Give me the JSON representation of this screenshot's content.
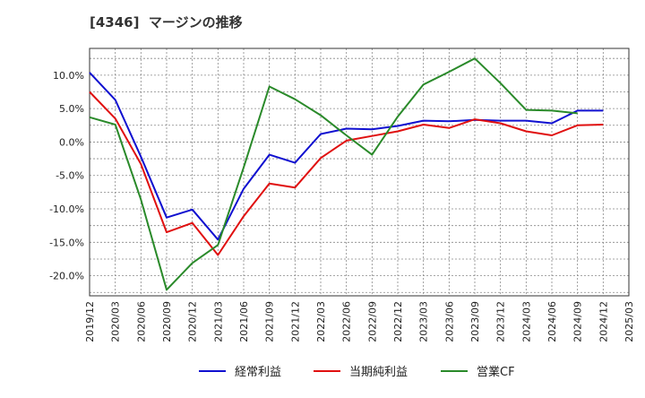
{
  "chart_data": {
    "type": "line",
    "title": "[4346]  マージンの推移",
    "x": [
      "2019/12",
      "2020/03",
      "2020/06",
      "2020/09",
      "2020/12",
      "2021/03",
      "2021/06",
      "2021/09",
      "2021/12",
      "2022/03",
      "2022/06",
      "2022/09",
      "2022/12",
      "2023/03",
      "2023/06",
      "2023/09",
      "2023/12",
      "2024/03",
      "2024/06",
      "2024/09",
      "2024/12",
      "2025/03"
    ],
    "y_ticks": [
      10,
      5,
      0,
      -5,
      -10,
      -15,
      -20
    ],
    "y_tick_labels": [
      "10.0%",
      "5.0%",
      "0.0%",
      "-5.0%",
      "-10.0%",
      "-15.0%",
      "-20.0%"
    ],
    "ylim": [
      -23,
      14
    ],
    "grid": true,
    "legend_position": "bottom",
    "series": [
      {
        "name": "経常利益",
        "color": "#1010d0",
        "values": [
          10.4,
          6.3,
          -2.2,
          -11.3,
          -10.1,
          -14.6,
          -7.0,
          -1.9,
          -3.1,
          1.2,
          2.0,
          1.9,
          2.4,
          3.2,
          3.1,
          3.3,
          3.2,
          3.2,
          2.8,
          4.7,
          4.7,
          null
        ]
      },
      {
        "name": "当期純利益",
        "color": "#e01010",
        "values": [
          7.5,
          3.5,
          -3.3,
          -13.5,
          -12.1,
          -16.9,
          -11.1,
          -6.2,
          -6.8,
          -2.4,
          0.2,
          0.9,
          1.6,
          2.6,
          2.1,
          3.4,
          2.8,
          1.6,
          1.0,
          2.5,
          2.6,
          null
        ]
      },
      {
        "name": "営業CF",
        "color": "#2a8a2a",
        "values": [
          3.7,
          2.6,
          -8.6,
          -22.1,
          -18.1,
          -15.4,
          -3.8,
          8.3,
          6.4,
          4.0,
          1.0,
          -1.9,
          3.8,
          8.6,
          10.5,
          12.5,
          8.8,
          4.8,
          4.7,
          4.3,
          null,
          null
        ]
      }
    ]
  }
}
